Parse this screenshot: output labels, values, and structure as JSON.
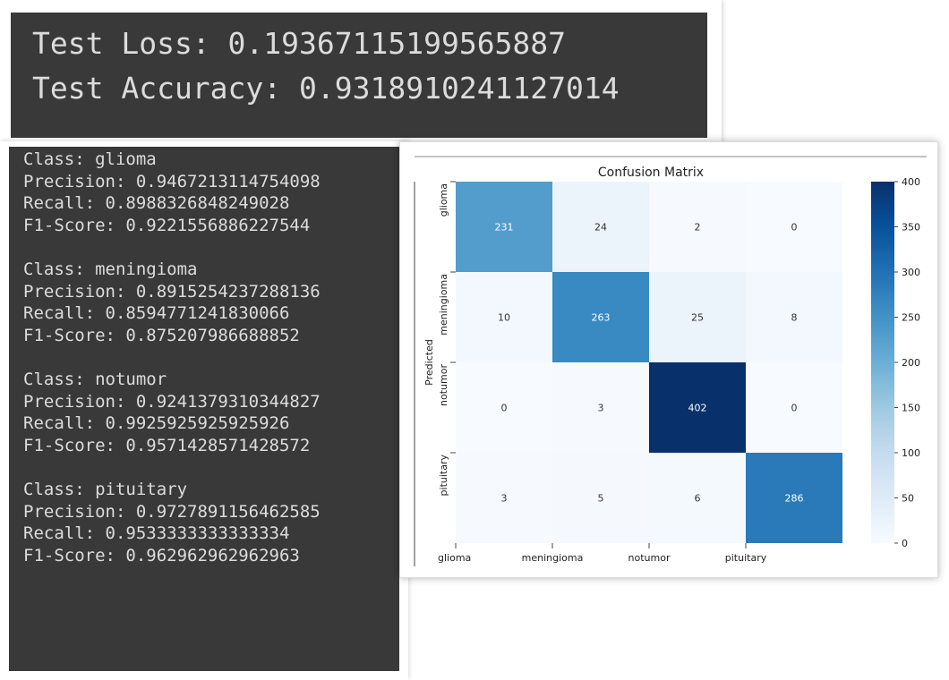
{
  "top_output": {
    "lines": [
      "Test Loss: 0.19367115199565887",
      "Test Accuracy: 0.9318910241127014"
    ]
  },
  "metrics_output": {
    "groups": [
      [
        "Class: glioma",
        "Precision: 0.9467213114754098",
        "Recall: 0.8988326848249028",
        "F1-Score: 0.9221556886227544"
      ],
      [
        "Class: meningioma",
        "Precision: 0.8915254237288136",
        "Recall: 0.8594771241830066",
        "F1-Score: 0.875207986688852"
      ],
      [
        "Class: notumor",
        "Precision: 0.9241379310344827",
        "Recall: 0.9925925925925926",
        "F1-Score: 0.9571428571428572"
      ],
      [
        "Class: pituitary",
        "Precision: 0.9727891156462585",
        "Recall: 0.9533333333333334",
        "F1-Score: 0.962962962962963"
      ]
    ]
  },
  "chart_data": {
    "type": "heatmap",
    "title": "Confusion Matrix",
    "xlabel": "",
    "ylabel": "Predicted",
    "x_categories": [
      "glioma",
      "meningioma",
      "notumor",
      "pituitary"
    ],
    "y_categories": [
      "glioma",
      "meningioma",
      "notumor",
      "pituitary"
    ],
    "values": [
      [
        231,
        24,
        2,
        0
      ],
      [
        10,
        263,
        25,
        8
      ],
      [
        0,
        3,
        402,
        0
      ],
      [
        3,
        5,
        6,
        286
      ]
    ],
    "colormap": "Blues",
    "colorbar": {
      "min": 0,
      "max": 400,
      "ticks": [
        0,
        50,
        100,
        150,
        200,
        250,
        300,
        350,
        400
      ]
    },
    "colors": {
      "low": "#f7fbff",
      "high": "#08306b",
      "text_dark": "#333333",
      "text_light": "#ffffff"
    }
  }
}
